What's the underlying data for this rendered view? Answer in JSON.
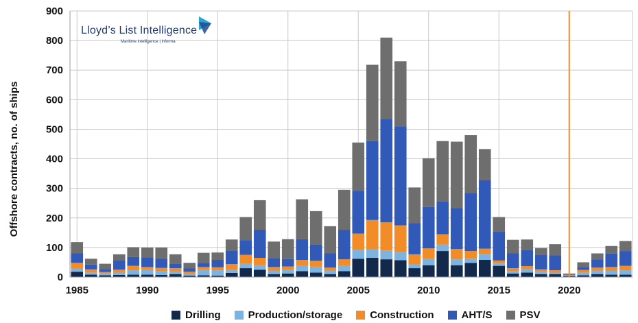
{
  "chart_data": {
    "type": "stacked-bar",
    "title": "",
    "xlabel": "",
    "ylabel": "Offshore contracts, no. of ships",
    "ylim": [
      0,
      900
    ],
    "yticks": [
      "0",
      "100",
      "200",
      "300",
      "400",
      "500",
      "600",
      "700",
      "800",
      "900"
    ],
    "xticks": [
      "1985",
      "1990",
      "1995",
      "2000",
      "2005",
      "2010",
      "2015",
      "2020"
    ],
    "grid": true,
    "legend_position": "bottom",
    "marker_year": 2020,
    "marker_color": "#f28c28",
    "years": [
      1985,
      1986,
      1987,
      1988,
      1989,
      1990,
      1991,
      1992,
      1993,
      1994,
      1995,
      1996,
      1997,
      1998,
      1999,
      2000,
      2001,
      2002,
      2003,
      2004,
      2005,
      2006,
      2007,
      2008,
      2009,
      2010,
      2011,
      2012,
      2013,
      2014,
      2015,
      2016,
      2017,
      2018,
      2019,
      2020,
      2021,
      2022,
      2023,
      2024
    ],
    "series": [
      {
        "name": "Drilling",
        "color": "#13294b",
        "values": [
          18,
          8,
          6,
          7,
          8,
          8,
          7,
          10,
          5,
          6,
          5,
          14,
          30,
          25,
          10,
          12,
          20,
          15,
          10,
          20,
          62,
          65,
          60,
          57,
          30,
          40,
          88,
          40,
          48,
          58,
          38,
          12,
          15,
          10,
          10,
          4,
          6,
          10,
          8,
          8
        ]
      },
      {
        "name": "Production/storage",
        "color": "#7cb3e0",
        "values": [
          10,
          8,
          6,
          8,
          15,
          16,
          12,
          8,
          5,
          18,
          18,
          10,
          15,
          15,
          12,
          12,
          18,
          20,
          12,
          18,
          30,
          28,
          30,
          28,
          12,
          22,
          22,
          20,
          15,
          20,
          8,
          8,
          12,
          8,
          5,
          2,
          10,
          12,
          14,
          15
        ]
      },
      {
        "name": "Construction",
        "color": "#f28c28",
        "values": [
          20,
          10,
          5,
          10,
          15,
          10,
          12,
          12,
          8,
          10,
          10,
          20,
          30,
          25,
          12,
          12,
          20,
          20,
          10,
          22,
          55,
          100,
          95,
          90,
          35,
          35,
          35,
          35,
          25,
          18,
          10,
          10,
          10,
          8,
          8,
          2,
          8,
          10,
          12,
          15
        ]
      },
      {
        "name": "AHT/S",
        "color": "#3059b8",
        "values": [
          32,
          16,
          10,
          32,
          30,
          32,
          32,
          15,
          12,
          14,
          25,
          46,
          50,
          95,
          30,
          25,
          70,
          55,
          48,
          100,
          145,
          267,
          350,
          335,
          105,
          140,
          110,
          138,
          195,
          232,
          97,
          50,
          55,
          50,
          50,
          2,
          10,
          28,
          45,
          50
        ]
      },
      {
        "name": "PSV",
        "color": "#6e6e6e",
        "values": [
          38,
          20,
          18,
          20,
          33,
          34,
          37,
          32,
          18,
          34,
          25,
          37,
          78,
          100,
          56,
          67,
          135,
          113,
          92,
          135,
          163,
          258,
          275,
          220,
          121,
          165,
          205,
          225,
          197,
          105,
          50,
          46,
          35,
          22,
          38,
          2,
          16,
          20,
          26,
          34
        ]
      }
    ],
    "watermark": {
      "title": "Lloyd’s List Intelligence",
      "subtitle": "Maritime intelligence | informa"
    }
  }
}
